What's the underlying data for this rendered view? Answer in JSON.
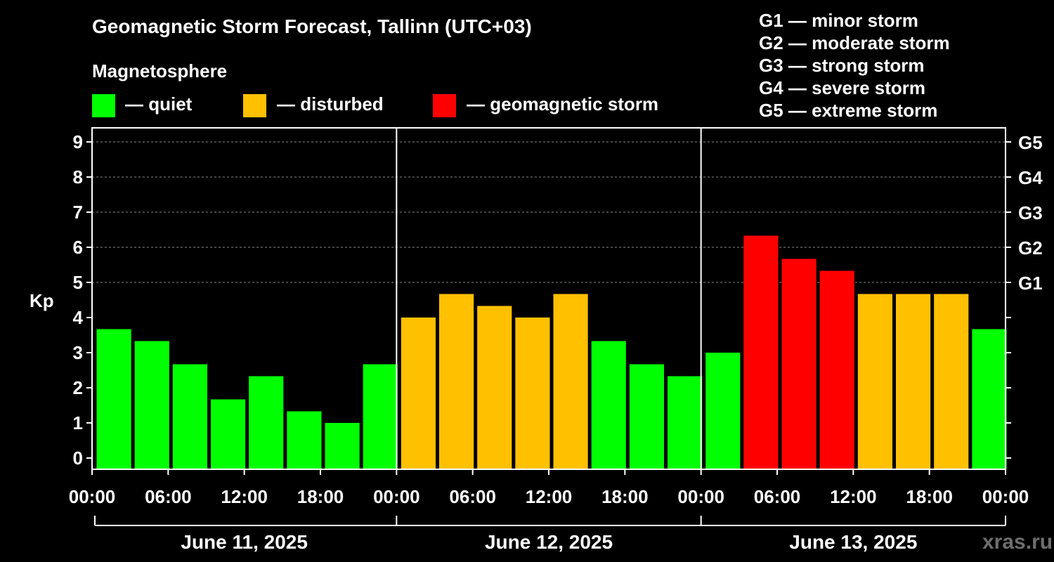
{
  "title": "Geomagnetic Storm Forecast, Tallinn (UTC+03)",
  "legend": {
    "heading": "Magnetosphere",
    "items": [
      {
        "label": "— quiet",
        "color": "#00ff00"
      },
      {
        "label": "— disturbed",
        "color": "#ffc000"
      },
      {
        "label": "— geomagnetic storm",
        "color": "#ff0000"
      }
    ]
  },
  "g_scale": [
    "G1 — minor storm",
    "G2 — moderate storm",
    "G3 — strong storm",
    "G4 — severe storm",
    "G5 — extreme storm"
  ],
  "watermark": "xras.ru",
  "chart_data": {
    "type": "bar",
    "ylabel": "Kp",
    "ylim": [
      0,
      9
    ],
    "y_ticks": [
      "0",
      "1",
      "2",
      "3",
      "4",
      "5",
      "6",
      "7",
      "8",
      "9"
    ],
    "right_ticks": [
      {
        "value": 5,
        "label": "G1"
      },
      {
        "value": 6,
        "label": "G2"
      },
      {
        "value": 7,
        "label": "G3"
      },
      {
        "value": 8,
        "label": "G4"
      },
      {
        "value": 9,
        "label": "G5"
      }
    ],
    "x_tick_labels": [
      "00:00",
      "06:00",
      "12:00",
      "18:00",
      "00:00",
      "06:00",
      "12:00",
      "18:00",
      "00:00",
      "06:00",
      "12:00",
      "18:00",
      "00:00"
    ],
    "days": [
      "June 11, 2025",
      "June 12, 2025",
      "June 13, 2025"
    ],
    "grid": true,
    "values": [
      3.67,
      3.33,
      2.67,
      1.67,
      2.33,
      1.33,
      1.0,
      2.67,
      4.0,
      4.67,
      4.33,
      4.0,
      4.67,
      3.33,
      2.67,
      2.33,
      3.0,
      6.33,
      5.67,
      5.33,
      4.67,
      4.67,
      4.67,
      3.67
    ],
    "colors": {
      "quiet": "#00ff00",
      "disturbed": "#ffc000",
      "storm": "#ff0000"
    }
  }
}
